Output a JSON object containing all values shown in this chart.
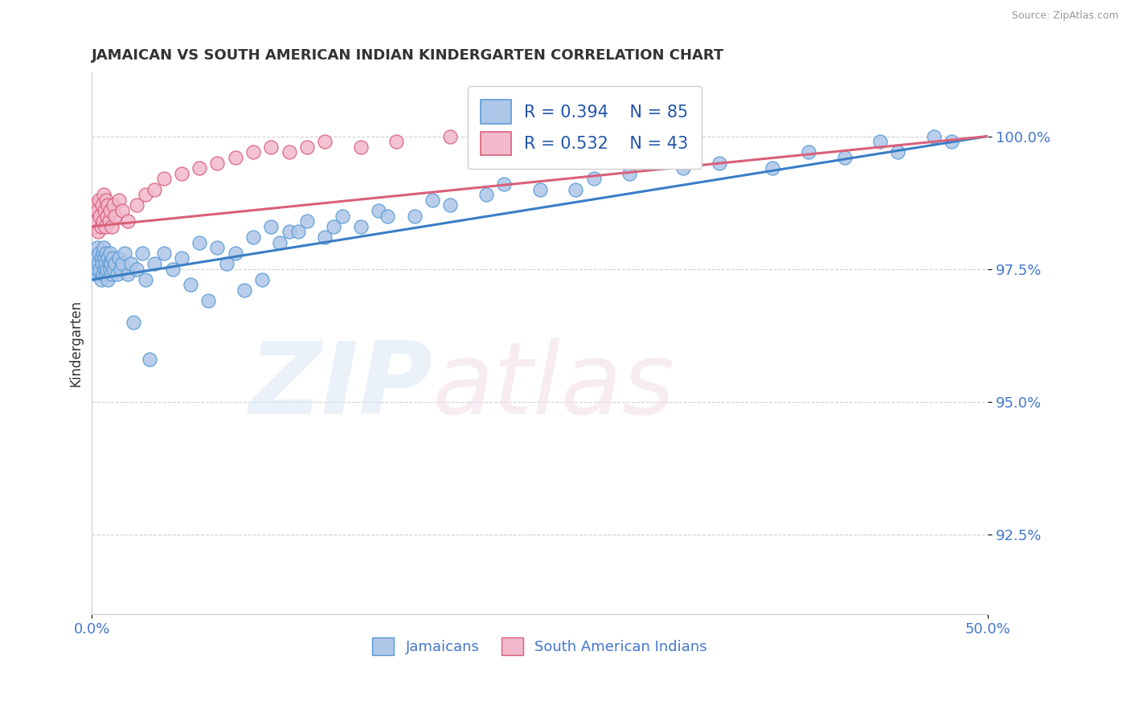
{
  "title": "JAMAICAN VS SOUTH AMERICAN INDIAN KINDERGARTEN CORRELATION CHART",
  "source_text": "Source: ZipAtlas.com",
  "ylabel": "Kindergarten",
  "y_ticks": [
    92.5,
    95.0,
    97.5,
    100.0
  ],
  "y_tick_labels": [
    "92.5%",
    "95.0%",
    "97.5%",
    "100.0%"
  ],
  "x_min": 0.0,
  "x_max": 50.0,
  "y_min": 91.0,
  "y_max": 101.2,
  "jamaicans_color": "#aec6e8",
  "jamaicans_edge": "#5b9bd5",
  "sai_color": "#f2b8cc",
  "sai_edge": "#d9607a",
  "trendline_jamaicans_color": "#3a7ec6",
  "trendline_sai_color": "#d9607a",
  "legend_text_color": "#2255aa",
  "axis_label_color": "#4477cc",
  "title_color": "#333333",
  "grid_color": "#d0d0d0",
  "jamaicans_x": [
    0.1,
    0.15,
    0.2,
    0.25,
    0.3,
    0.3,
    0.35,
    0.4,
    0.45,
    0.5,
    0.5,
    0.55,
    0.6,
    0.6,
    0.65,
    0.7,
    0.7,
    0.75,
    0.8,
    0.8,
    0.85,
    0.9,
    0.9,
    0.95,
    1.0,
    1.0,
    1.05,
    1.1,
    1.15,
    1.2,
    1.3,
    1.4,
    1.5,
    1.6,
    1.7,
    1.8,
    2.0,
    2.2,
    2.5,
    2.8,
    3.0,
    3.5,
    4.0,
    4.5,
    5.0,
    6.0,
    7.0,
    8.0,
    9.0,
    10.0,
    11.0,
    12.0,
    13.0,
    14.0,
    15.0,
    16.0,
    18.0,
    20.0,
    22.0,
    25.0,
    28.0,
    30.0,
    35.0,
    38.0,
    42.0,
    45.0,
    48.0,
    2.3,
    3.2,
    5.5,
    7.5,
    6.5,
    10.5,
    8.5,
    9.5,
    11.5,
    13.5,
    16.5,
    19.0,
    23.0,
    27.0,
    33.0,
    40.0,
    44.0,
    47.0
  ],
  "jamaicans_y": [
    97.5,
    97.6,
    97.4,
    97.7,
    97.5,
    97.9,
    97.6,
    97.8,
    97.5,
    97.7,
    97.3,
    97.6,
    97.8,
    97.4,
    97.9,
    97.5,
    97.7,
    97.6,
    97.8,
    97.4,
    97.5,
    97.7,
    97.3,
    97.6,
    97.8,
    97.5,
    97.6,
    97.4,
    97.7,
    97.5,
    97.6,
    97.4,
    97.7,
    97.5,
    97.6,
    97.8,
    97.4,
    97.6,
    97.5,
    97.8,
    97.3,
    97.6,
    97.8,
    97.5,
    97.7,
    98.0,
    97.9,
    97.8,
    98.1,
    98.3,
    98.2,
    98.4,
    98.1,
    98.5,
    98.3,
    98.6,
    98.5,
    98.7,
    98.9,
    99.0,
    99.2,
    99.3,
    99.5,
    99.4,
    99.6,
    99.7,
    99.9,
    96.5,
    95.8,
    97.2,
    97.6,
    96.9,
    98.0,
    97.1,
    97.3,
    98.2,
    98.3,
    98.5,
    98.8,
    99.1,
    99.0,
    99.4,
    99.7,
    99.9,
    100.0
  ],
  "sai_x": [
    0.1,
    0.15,
    0.2,
    0.25,
    0.3,
    0.35,
    0.4,
    0.45,
    0.5,
    0.55,
    0.6,
    0.65,
    0.7,
    0.75,
    0.8,
    0.85,
    0.9,
    0.95,
    1.0,
    1.1,
    1.2,
    1.3,
    1.5,
    1.7,
    2.0,
    2.5,
    3.0,
    3.5,
    4.0,
    5.0,
    6.0,
    7.0,
    8.0,
    9.0,
    10.0,
    11.0,
    12.0,
    13.0,
    15.0,
    17.0,
    20.0,
    25.0,
    30.0
  ],
  "sai_y": [
    98.5,
    98.3,
    98.7,
    98.4,
    98.6,
    98.2,
    98.8,
    98.5,
    98.3,
    98.7,
    98.4,
    98.9,
    98.6,
    98.3,
    98.8,
    98.5,
    98.7,
    98.4,
    98.6,
    98.3,
    98.7,
    98.5,
    98.8,
    98.6,
    98.4,
    98.7,
    98.9,
    99.0,
    99.2,
    99.3,
    99.4,
    99.5,
    99.6,
    99.7,
    99.8,
    99.7,
    99.8,
    99.9,
    99.8,
    99.9,
    100.0,
    99.9,
    100.0
  ],
  "jam_trend_x0": 0.0,
  "jam_trend_y0": 97.3,
  "jam_trend_x1": 50.0,
  "jam_trend_y1": 100.0,
  "sai_trend_x0": 0.0,
  "sai_trend_y0": 98.3,
  "sai_trend_x1": 50.0,
  "sai_trend_y1": 100.0
}
